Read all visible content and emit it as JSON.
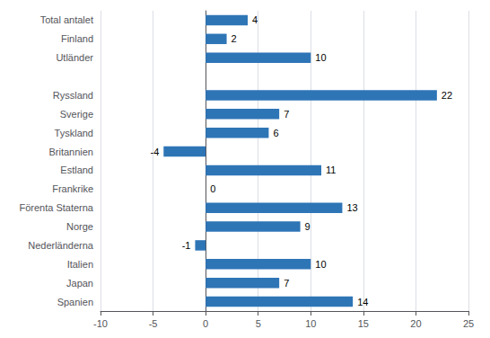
{
  "chart_data": {
    "type": "bar",
    "orientation": "horizontal",
    "categories": [
      "Total antalet",
      "Finland",
      "Utländer",
      null,
      "Ryssland",
      "Sverige",
      "Tyskland",
      "Britannien",
      "Estland",
      "Frankrike",
      "Förenta Staterna",
      "Norge",
      "Nederländerna",
      "Italien",
      "Japan",
      "Spanien"
    ],
    "values": [
      4,
      2,
      10,
      null,
      22,
      7,
      6,
      -4,
      11,
      0,
      13,
      9,
      -1,
      10,
      7,
      14
    ],
    "color": "#2E75B6",
    "xlim": [
      -10,
      25
    ],
    "xticks": [
      -10,
      -5,
      0,
      5,
      10,
      15,
      20,
      25
    ],
    "grid": true,
    "data_labels": true
  }
}
